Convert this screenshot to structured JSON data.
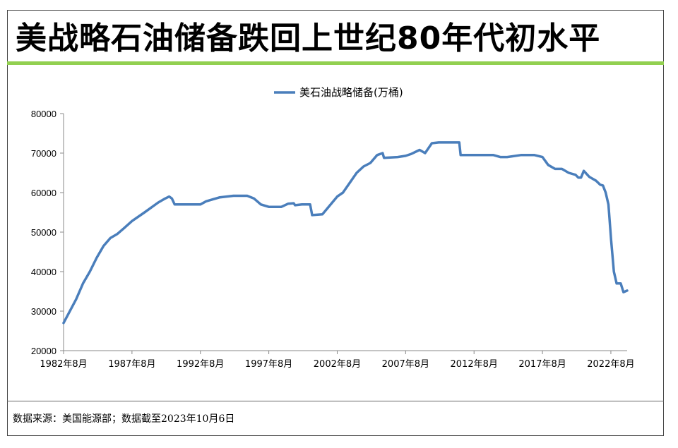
{
  "header": {
    "title": "美战略石油储备跌回上世纪80年代初水平"
  },
  "footer": {
    "source": "数据来源：美国能源部；数据截至2023年10月6日"
  },
  "colors": {
    "accent_bar": "#92d050",
    "series_line": "#4a7ebb"
  },
  "chart_data": {
    "type": "line",
    "title": "",
    "xlabel": "",
    "ylabel": "",
    "ylim": [
      20000,
      80000
    ],
    "yticks": [
      20000,
      30000,
      40000,
      50000,
      60000,
      70000,
      80000
    ],
    "xlim": [
      1982.58,
      2023.77
    ],
    "xticks": [
      {
        "value": 1982.58,
        "label": "1982年8月"
      },
      {
        "value": 1987.58,
        "label": "1987年8月"
      },
      {
        "value": 1992.58,
        "label": "1992年8月"
      },
      {
        "value": 1997.58,
        "label": "1997年8月"
      },
      {
        "value": 2002.58,
        "label": "2002年8月"
      },
      {
        "value": 2007.58,
        "label": "2007年8月"
      },
      {
        "value": 2012.58,
        "label": "2012年8月"
      },
      {
        "value": 2017.58,
        "label": "2017年8月"
      },
      {
        "value": 2022.58,
        "label": "2022年8月"
      }
    ],
    "legend": "top-center",
    "grid": false,
    "series": [
      {
        "name": "美石油战略储备(万桶)",
        "x": [
          1982.58,
          1983.5,
          1984.0,
          1984.5,
          1985.0,
          1985.5,
          1986.0,
          1986.5,
          1987.0,
          1987.58,
          1988.5,
          1989.5,
          1990.0,
          1990.3,
          1990.5,
          1990.7,
          1991.5,
          1992.58,
          1993.0,
          1994.0,
          1995.0,
          1996.0,
          1996.5,
          1997.0,
          1997.58,
          1998.5,
          1999.0,
          1999.4,
          1999.5,
          2000.0,
          2000.6,
          2000.75,
          2001.5,
          2002.58,
          2003.0,
          2003.5,
          2004.0,
          2004.5,
          2005.0,
          2005.5,
          2005.9,
          2006.0,
          2007.0,
          2007.58,
          2008.0,
          2008.6,
          2009.0,
          2009.5,
          2010.0,
          2011.0,
          2011.5,
          2011.6,
          2012.58,
          2013.0,
          2014.0,
          2014.5,
          2015.0,
          2016.0,
          2016.5,
          2017.0,
          2017.58,
          2018.0,
          2018.5,
          2019.0,
          2019.5,
          2020.0,
          2020.2,
          2020.4,
          2020.6,
          2021.0,
          2021.5,
          2021.8,
          2022.0,
          2022.2,
          2022.4,
          2022.6,
          2022.8,
          2023.0,
          2023.3,
          2023.5,
          2023.77
        ],
        "values": [
          27000,
          33000,
          37000,
          40000,
          43500,
          46500,
          48500,
          49500,
          51000,
          52800,
          55000,
          57500,
          58500,
          59000,
          58500,
          57000,
          57000,
          57000,
          57800,
          58800,
          59200,
          59200,
          58500,
          57000,
          56400,
          56400,
          57200,
          57300,
          56800,
          57000,
          57000,
          54300,
          54500,
          59000,
          60000,
          62500,
          65000,
          66600,
          67500,
          69500,
          70000,
          68800,
          69000,
          69300,
          69800,
          70800,
          70000,
          72500,
          72700,
          72700,
          72700,
          69500,
          69500,
          69500,
          69500,
          69000,
          69000,
          69500,
          69500,
          69500,
          69000,
          67000,
          66000,
          66000,
          65000,
          64500,
          63800,
          63800,
          65500,
          64000,
          63000,
          62000,
          61800,
          60000,
          57000,
          48000,
          40000,
          37000,
          37000,
          34800,
          35200
        ]
      }
    ]
  }
}
